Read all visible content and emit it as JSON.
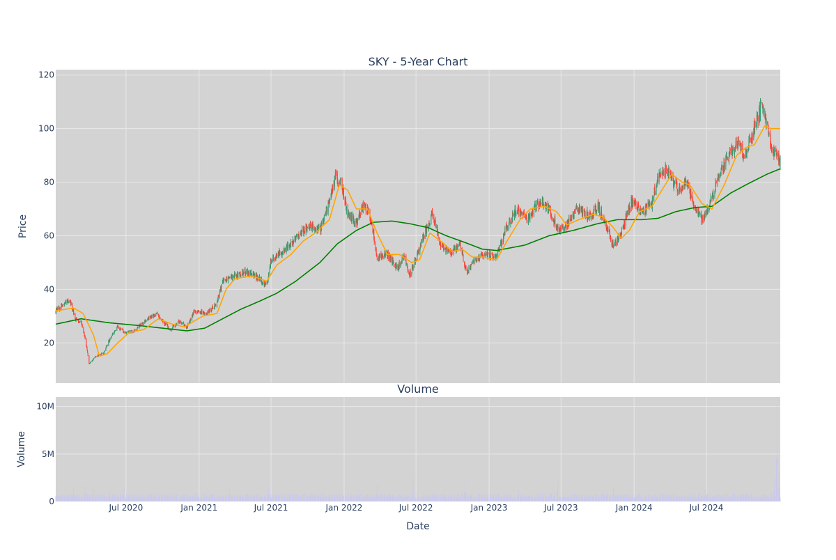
{
  "chart_data": {
    "type": "candlestick",
    "title": "SKY - 5-Year Chart",
    "colors": {
      "background": "#d3d3d3",
      "grid": "#e8e8e8",
      "up": "#3d9970",
      "down": "#ff4136",
      "ma_short": "#ffa500",
      "ma_long": "#008000",
      "volume": "#c9c9ee",
      "text": "#2a3f5f"
    },
    "price_panel": {
      "ylabel": "Price",
      "ylim": [
        5,
        122
      ],
      "yticks": [
        20,
        40,
        60,
        80,
        100,
        120
      ],
      "ytick_labels": [
        "20",
        "40",
        "60",
        "80",
        "100",
        "120"
      ]
    },
    "volume_panel": {
      "title": "Volume",
      "ylabel": "Volume",
      "ylim": [
        0,
        11000000
      ],
      "yticks": [
        0,
        5000000,
        10000000
      ],
      "ytick_labels": [
        "0",
        "5M",
        "10M"
      ]
    },
    "x_axis": {
      "xlabel": "Date",
      "range": [
        "2020-01-06",
        "2025-01-03"
      ],
      "ticks": [
        "2020-07-01",
        "2021-01-01",
        "2021-07-01",
        "2022-01-01",
        "2022-07-01",
        "2023-01-01",
        "2023-07-01",
        "2024-01-01",
        "2024-07-01"
      ],
      "tick_labels": [
        "Jul 2020",
        "Jan 2021",
        "Jul 2021",
        "Jan 2022",
        "Jul 2022",
        "Jan 2023",
        "Jul 2023",
        "Jan 2024",
        "Jul 2024"
      ]
    },
    "price_anchors": [
      [
        "2020-01-06",
        32
      ],
      [
        "2020-02-10",
        36
      ],
      [
        "2020-02-24",
        29
      ],
      [
        "2020-03-10",
        28
      ],
      [
        "2020-03-20",
        22
      ],
      [
        "2020-03-30",
        12
      ],
      [
        "2020-04-15",
        15
      ],
      [
        "2020-05-05",
        16
      ],
      [
        "2020-05-20",
        21
      ],
      [
        "2020-06-10",
        26
      ],
      [
        "2020-06-25",
        24
      ],
      [
        "2020-07-20",
        24
      ],
      [
        "2020-08-15",
        28
      ],
      [
        "2020-09-15",
        31
      ],
      [
        "2020-10-20",
        25
      ],
      [
        "2020-11-10",
        28
      ],
      [
        "2020-12-01",
        26
      ],
      [
        "2020-12-20",
        32
      ],
      [
        "2021-01-20",
        31
      ],
      [
        "2021-02-15",
        35
      ],
      [
        "2021-03-01",
        43
      ],
      [
        "2021-04-01",
        45
      ],
      [
        "2021-05-01",
        47
      ],
      [
        "2021-06-01",
        44
      ],
      [
        "2021-06-20",
        41
      ],
      [
        "2021-07-01",
        51
      ],
      [
        "2021-08-01",
        54
      ],
      [
        "2021-09-01",
        59
      ],
      [
        "2021-10-01",
        64
      ],
      [
        "2021-11-01",
        62
      ],
      [
        "2021-11-20",
        70
      ],
      [
        "2021-12-10",
        82
      ],
      [
        "2021-12-25",
        80
      ],
      [
        "2022-01-10",
        68
      ],
      [
        "2022-02-01",
        65
      ],
      [
        "2022-02-20",
        72
      ],
      [
        "2022-03-10",
        66
      ],
      [
        "2022-03-25",
        52
      ],
      [
        "2022-04-20",
        53
      ],
      [
        "2022-05-15",
        48
      ],
      [
        "2022-06-01",
        53
      ],
      [
        "2022-06-15",
        45
      ],
      [
        "2022-07-10",
        56
      ],
      [
        "2022-08-10",
        68
      ],
      [
        "2022-09-01",
        57
      ],
      [
        "2022-09-25",
        53
      ],
      [
        "2022-10-20",
        57
      ],
      [
        "2022-11-05",
        46
      ],
      [
        "2022-11-25",
        51
      ],
      [
        "2022-12-20",
        53
      ],
      [
        "2023-01-20",
        52
      ],
      [
        "2023-02-10",
        62
      ],
      [
        "2023-03-10",
        70
      ],
      [
        "2023-04-05",
        66
      ],
      [
        "2023-05-10",
        73
      ],
      [
        "2023-06-01",
        70
      ],
      [
        "2023-06-25",
        62
      ],
      [
        "2023-07-15",
        64
      ],
      [
        "2023-08-10",
        70
      ],
      [
        "2023-09-10",
        67
      ],
      [
        "2023-10-01",
        71
      ],
      [
        "2023-10-20",
        65
      ],
      [
        "2023-11-10",
        56
      ],
      [
        "2023-12-05",
        63
      ],
      [
        "2023-12-25",
        73
      ],
      [
        "2024-01-20",
        69
      ],
      [
        "2024-02-15",
        72
      ],
      [
        "2024-03-01",
        82
      ],
      [
        "2024-03-25",
        85
      ],
      [
        "2024-04-20",
        77
      ],
      [
        "2024-05-10",
        80
      ],
      [
        "2024-05-30",
        72
      ],
      [
        "2024-06-20",
        66
      ],
      [
        "2024-07-10",
        72
      ],
      [
        "2024-08-01",
        82
      ],
      [
        "2024-08-20",
        88
      ],
      [
        "2024-09-15",
        95
      ],
      [
        "2024-10-05",
        90
      ],
      [
        "2024-10-25",
        98
      ],
      [
        "2024-11-10",
        105
      ],
      [
        "2024-11-20",
        110
      ],
      [
        "2024-12-01",
        100
      ],
      [
        "2024-12-15",
        92
      ],
      [
        "2025-01-03",
        88
      ]
    ],
    "ma_short_anchors": [
      [
        "2020-01-06",
        32
      ],
      [
        "2020-02-20",
        33
      ],
      [
        "2020-03-15",
        31
      ],
      [
        "2020-04-10",
        23
      ],
      [
        "2020-04-25",
        15
      ],
      [
        "2020-05-15",
        16
      ],
      [
        "2020-06-10",
        20
      ],
      [
        "2020-07-10",
        24
      ],
      [
        "2020-08-15",
        25
      ],
      [
        "2020-09-20",
        29
      ],
      [
        "2020-10-25",
        27
      ],
      [
        "2020-11-25",
        26
      ],
      [
        "2021-01-10",
        30
      ],
      [
        "2021-02-15",
        31
      ],
      [
        "2021-03-10",
        40
      ],
      [
        "2021-04-01",
        44
      ],
      [
        "2021-05-15",
        45
      ],
      [
        "2021-06-20",
        43
      ],
      [
        "2021-07-15",
        49
      ],
      [
        "2021-08-20",
        53
      ],
      [
        "2021-09-20",
        58
      ],
      [
        "2021-10-20",
        61
      ],
      [
        "2021-11-25",
        66
      ],
      [
        "2021-12-20",
        79
      ],
      [
        "2022-01-10",
        77
      ],
      [
        "2022-02-01",
        70
      ],
      [
        "2022-03-01",
        70
      ],
      [
        "2022-03-25",
        61
      ],
      [
        "2022-04-20",
        53
      ],
      [
        "2022-05-20",
        53
      ],
      [
        "2022-06-20",
        50
      ],
      [
        "2022-07-10",
        51
      ],
      [
        "2022-08-05",
        61
      ],
      [
        "2022-09-10",
        57
      ],
      [
        "2022-09-30",
        54
      ],
      [
        "2022-10-25",
        55
      ],
      [
        "2022-11-20",
        52
      ],
      [
        "2022-12-20",
        52
      ],
      [
        "2023-01-20",
        51
      ],
      [
        "2023-02-15",
        58
      ],
      [
        "2023-03-20",
        66
      ],
      [
        "2023-04-15",
        70
      ],
      [
        "2023-05-20",
        71
      ],
      [
        "2023-06-20",
        69
      ],
      [
        "2023-07-15",
        64
      ],
      [
        "2023-08-15",
        66
      ],
      [
        "2023-09-20",
        68
      ],
      [
        "2023-10-15",
        67
      ],
      [
        "2023-11-10",
        63
      ],
      [
        "2023-11-30",
        59
      ],
      [
        "2023-12-20",
        62
      ],
      [
        "2024-01-15",
        69
      ],
      [
        "2024-02-15",
        71
      ],
      [
        "2024-03-15",
        78
      ],
      [
        "2024-04-05",
        83
      ],
      [
        "2024-05-01",
        80
      ],
      [
        "2024-05-20",
        79
      ],
      [
        "2024-06-20",
        72
      ],
      [
        "2024-07-15",
        70
      ],
      [
        "2024-08-15",
        79
      ],
      [
        "2024-09-15",
        90
      ],
      [
        "2024-10-10",
        93
      ],
      [
        "2024-10-30",
        94
      ],
      [
        "2024-11-25",
        101
      ],
      [
        "2024-12-10",
        100
      ],
      [
        "2025-01-03",
        100
      ]
    ],
    "ma_long_anchors": [
      [
        "2020-01-06",
        27
      ],
      [
        "2020-03-10",
        29
      ],
      [
        "2020-05-20",
        27.5
      ],
      [
        "2020-08-01",
        26.5
      ],
      [
        "2020-10-01",
        25.5
      ],
      [
        "2020-12-01",
        24.5
      ],
      [
        "2021-01-15",
        25.5
      ],
      [
        "2021-03-01",
        29
      ],
      [
        "2021-04-15",
        32.5
      ],
      [
        "2021-06-01",
        35.5
      ],
      [
        "2021-07-15",
        38.5
      ],
      [
        "2021-09-01",
        43
      ],
      [
        "2021-11-01",
        50
      ],
      [
        "2021-12-15",
        57
      ],
      [
        "2022-02-01",
        62
      ],
      [
        "2022-03-15",
        65
      ],
      [
        "2022-05-01",
        65.5
      ],
      [
        "2022-06-15",
        64.5
      ],
      [
        "2022-08-01",
        63
      ],
      [
        "2022-09-15",
        60
      ],
      [
        "2022-11-01",
        57.5
      ],
      [
        "2022-12-15",
        55
      ],
      [
        "2023-01-20",
        54.5
      ],
      [
        "2023-04-01",
        56.5
      ],
      [
        "2023-06-01",
        60
      ],
      [
        "2023-08-01",
        62
      ],
      [
        "2023-10-01",
        64.5
      ],
      [
        "2023-11-20",
        66
      ],
      [
        "2024-01-20",
        66
      ],
      [
        "2024-03-01",
        66.5
      ],
      [
        "2024-04-15",
        69
      ],
      [
        "2024-06-01",
        70.5
      ],
      [
        "2024-07-15",
        71
      ],
      [
        "2024-09-01",
        76
      ],
      [
        "2024-10-15",
        79.5
      ],
      [
        "2024-12-01",
        83
      ],
      [
        "2025-01-03",
        85
      ]
    ],
    "volume_baseline": 600000,
    "volume_spikes": [
      [
        "2020-02-20",
        1600000
      ],
      [
        "2020-03-20",
        1700000
      ],
      [
        "2020-04-10",
        1300000
      ],
      [
        "2020-05-20",
        1200000
      ],
      [
        "2020-06-26",
        1400000
      ],
      [
        "2020-10-10",
        1000000
      ],
      [
        "2021-03-19",
        1400000
      ],
      [
        "2021-06-25",
        1500000
      ],
      [
        "2021-11-10",
        1100000
      ],
      [
        "2022-02-10",
        1300000
      ],
      [
        "2022-03-25",
        1800000
      ],
      [
        "2022-06-24",
        2400000
      ],
      [
        "2022-11-01",
        2000000
      ],
      [
        "2023-03-17",
        1300000
      ],
      [
        "2023-05-10",
        1100000
      ],
      [
        "2023-06-23",
        2200000
      ],
      [
        "2023-11-10",
        1500000
      ],
      [
        "2024-06-28",
        1300000
      ],
      [
        "2024-12-20",
        2500000
      ],
      [
        "2024-12-26",
        10200000
      ],
      [
        "2024-12-31",
        3000000
      ]
    ]
  }
}
